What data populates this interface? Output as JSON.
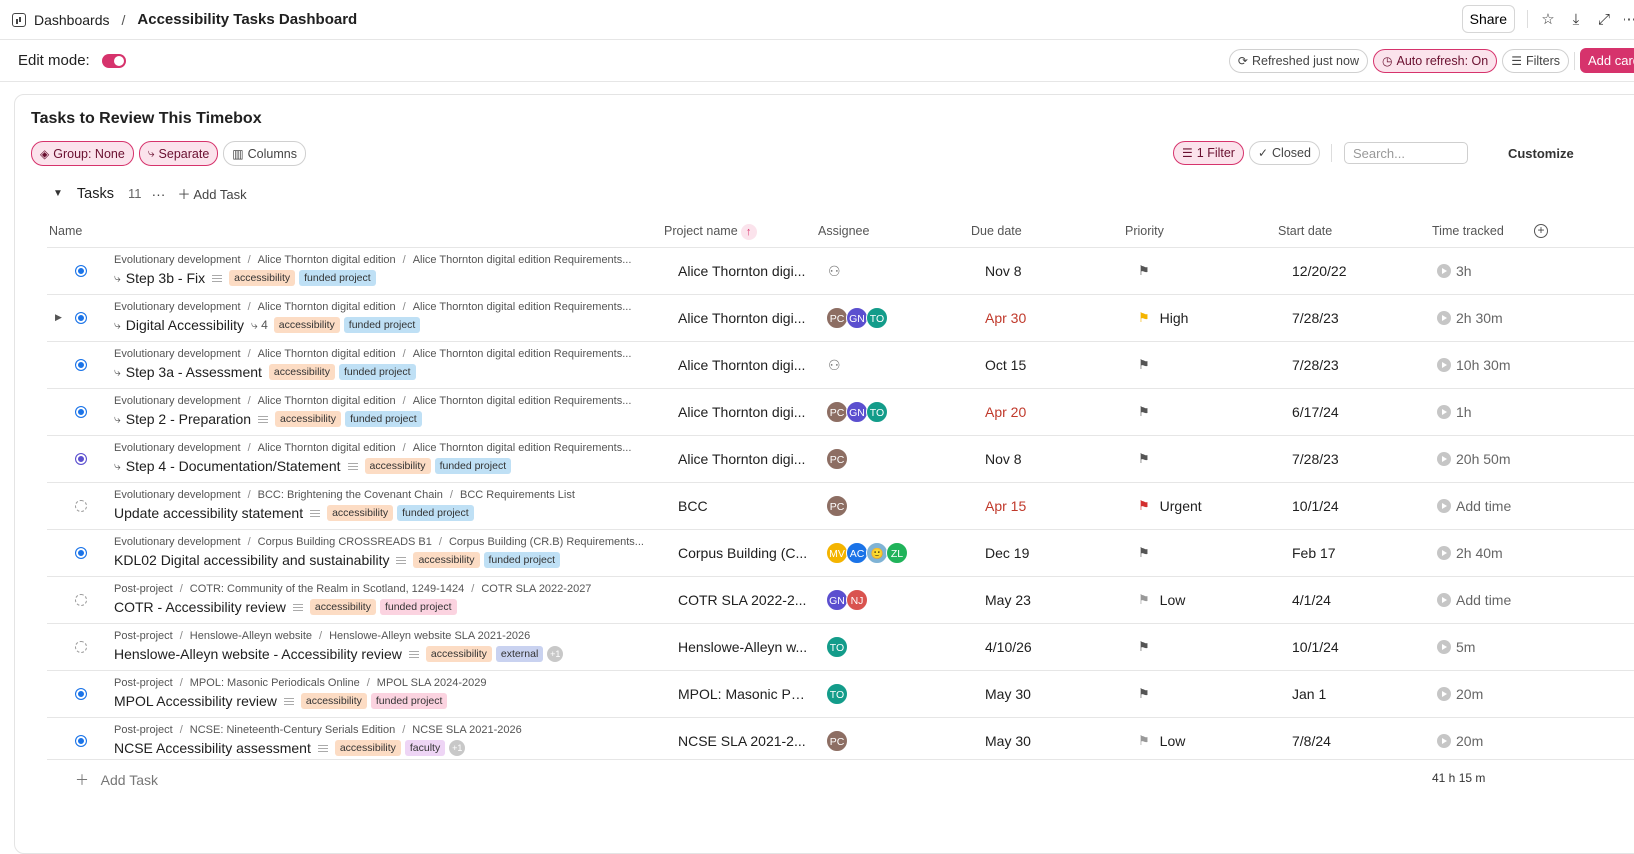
{
  "topbar": {
    "breadcrumb_root": "Dashboards",
    "breadcrumb_sep": "/",
    "title": "Accessibility Tasks Dashboard",
    "share_label": "Share"
  },
  "editbar": {
    "edit_mode_label": "Edit mode:",
    "edit_mode_on": true,
    "refreshed_label": "Refreshed just now",
    "auto_refresh_label": "Auto refresh: On",
    "filters_label": "Filters",
    "add_card_label": "Add card"
  },
  "card": {
    "title": "Tasks to Review This Timebox",
    "group_label": "Group: None",
    "separate_label": "Separate",
    "columns_label": "Columns",
    "filter_label": "1 Filter",
    "closed_label": "Closed",
    "search_placeholder": "Search...",
    "customize_label": "Customize"
  },
  "group": {
    "name": "Tasks",
    "count": "11",
    "more": "···",
    "add_task": "Add Task"
  },
  "columns": {
    "name": "Name",
    "project": "Project name",
    "assignee": "Assignee",
    "due": "Due date",
    "priority": "Priority",
    "start": "Start date",
    "time": "Time tracked"
  },
  "colors": {
    "accent": "#d6336c",
    "status_blue": "#1a73e8",
    "status_purple": "#5b4fcf",
    "overdue": "#c0392b"
  },
  "tasks": [
    {
      "path": [
        "Evolutionary development",
        "Alice Thornton digital edition",
        "Alice Thornton digital edition Requirements..."
      ],
      "name": "Step 3b - Fix",
      "subtask_icon": true,
      "desc_icon": true,
      "subcount": "",
      "tags": [
        [
          "accessibility",
          "access"
        ],
        [
          "funded project",
          "funded-blue"
        ]
      ],
      "plus": "",
      "project": "Alice Thornton digi...",
      "assignees": [],
      "due": "Nov 8",
      "due_overdue": false,
      "priority": "",
      "flag": "",
      "start": "12/20/22",
      "time": "3h",
      "status": "blue",
      "expandable": false
    },
    {
      "path": [
        "Evolutionary development",
        "Alice Thornton digital edition",
        "Alice Thornton digital edition Requirements..."
      ],
      "name": "Digital Accessibility",
      "subtask_icon": true,
      "desc_icon": false,
      "subcount": "4",
      "tags": [
        [
          "accessibility",
          "access"
        ],
        [
          "funded project",
          "funded-blue"
        ]
      ],
      "plus": "",
      "project": "Alice Thornton digi...",
      "assignees": [
        [
          "PC",
          "#8d6e63"
        ],
        [
          "GN",
          "#5b4fcf"
        ],
        [
          "TO",
          "#139c8a"
        ]
      ],
      "due": "Apr 30",
      "due_overdue": true,
      "priority": "High",
      "flag": "yellow",
      "start": "7/28/23",
      "time": "2h 30m",
      "status": "blue",
      "expandable": true
    },
    {
      "path": [
        "Evolutionary development",
        "Alice Thornton digital edition",
        "Alice Thornton digital edition Requirements..."
      ],
      "name": "Step 3a - Assessment",
      "subtask_icon": true,
      "desc_icon": false,
      "subcount": "",
      "tags": [
        [
          "accessibility",
          "access"
        ],
        [
          "funded project",
          "funded-blue"
        ]
      ],
      "plus": "",
      "project": "Alice Thornton digi...",
      "assignees": [],
      "due": "Oct 15",
      "due_overdue": false,
      "priority": "",
      "flag": "",
      "start": "7/28/23",
      "time": "10h 30m",
      "status": "blue",
      "expandable": false
    },
    {
      "path": [
        "Evolutionary development",
        "Alice Thornton digital edition",
        "Alice Thornton digital edition Requirements..."
      ],
      "name": "Step 2 - Preparation",
      "subtask_icon": true,
      "desc_icon": true,
      "subcount": "",
      "tags": [
        [
          "accessibility",
          "access"
        ],
        [
          "funded project",
          "funded-blue"
        ]
      ],
      "plus": "",
      "project": "Alice Thornton digi...",
      "assignees": [
        [
          "PC",
          "#8d6e63"
        ],
        [
          "GN",
          "#5b4fcf"
        ],
        [
          "TO",
          "#139c8a"
        ]
      ],
      "due": "Apr 20",
      "due_overdue": true,
      "priority": "",
      "flag": "",
      "start": "6/17/24",
      "time": "1h",
      "status": "blue",
      "expandable": false
    },
    {
      "path": [
        "Evolutionary development",
        "Alice Thornton digital edition",
        "Alice Thornton digital edition Requirements..."
      ],
      "name": "Step 4 - Documentation/Statement",
      "subtask_icon": true,
      "desc_icon": true,
      "subcount": "",
      "tags": [
        [
          "accessibility",
          "access"
        ],
        [
          "funded project",
          "funded-blue"
        ]
      ],
      "plus": "",
      "project": "Alice Thornton digi...",
      "assignees": [
        [
          "PC",
          "#8d6e63"
        ]
      ],
      "due": "Nov 8",
      "due_overdue": false,
      "priority": "",
      "flag": "",
      "start": "7/28/23",
      "time": "20h 50m",
      "status": "purple",
      "expandable": false
    },
    {
      "path": [
        "Evolutionary development",
        "BCC: Brightening the Covenant Chain",
        "BCC Requirements List"
      ],
      "name": "Update accessibility statement",
      "subtask_icon": false,
      "desc_icon": true,
      "subcount": "",
      "tags": [
        [
          "accessibility",
          "access"
        ],
        [
          "funded project",
          "funded-blue"
        ]
      ],
      "plus": "",
      "project": "BCC",
      "assignees": [
        [
          "PC",
          "#8d6e63"
        ]
      ],
      "due": "Apr 15",
      "due_overdue": true,
      "priority": "Urgent",
      "flag": "red",
      "start": "10/1/24",
      "time": "Add time",
      "status": "open",
      "expandable": false
    },
    {
      "path": [
        "Evolutionary development",
        "Corpus Building CROSSREADS B1",
        "Corpus Building (CR.B) Requirements..."
      ],
      "name": "KDL02 Digital accessibility and sustainability",
      "subtask_icon": false,
      "desc_icon": true,
      "subcount": "",
      "tags": [
        [
          "accessibility",
          "access"
        ],
        [
          "funded project",
          "funded-blue"
        ]
      ],
      "plus": "",
      "project": "Corpus Building (C...",
      "assignees": [
        [
          "MV",
          "#f4b400"
        ],
        [
          "AC",
          "#1a73e8"
        ],
        [
          "🙂",
          "#7fb3d5"
        ],
        [
          "ZL",
          "#20b35a"
        ]
      ],
      "due": "Dec 19",
      "due_overdue": false,
      "priority": "",
      "flag": "",
      "start": "Feb 17",
      "time": "2h 40m",
      "status": "blue",
      "expandable": false
    },
    {
      "path": [
        "Post-project",
        "COTR: Community of the Realm in Scotland, 1249-1424",
        "COTR SLA 2022-2027"
      ],
      "name": "COTR - Accessibility review",
      "subtask_icon": false,
      "desc_icon": true,
      "subcount": "",
      "tags": [
        [
          "accessibility",
          "access"
        ],
        [
          "funded project",
          "funded-pink"
        ]
      ],
      "plus": "",
      "project": "COTR SLA 2022-2...",
      "assignees": [
        [
          "GN",
          "#5b4fcf"
        ],
        [
          "NJ",
          "#d9534f"
        ]
      ],
      "due": "May 23",
      "due_overdue": false,
      "priority": "Low",
      "flag": "gray",
      "start": "4/1/24",
      "time": "Add time",
      "status": "open",
      "expandable": false
    },
    {
      "path": [
        "Post-project",
        "Henslowe-Alleyn website",
        "Henslowe-Alleyn website SLA 2021-2026"
      ],
      "name": "Henslowe-Alleyn website - Accessibility review",
      "subtask_icon": false,
      "desc_icon": true,
      "subcount": "",
      "tags": [
        [
          "accessibility",
          "access"
        ],
        [
          "external",
          "external"
        ]
      ],
      "plus": "+1",
      "project": "Henslowe-Alleyn w...",
      "assignees": [
        [
          "TO",
          "#139c8a"
        ]
      ],
      "due": "4/10/26",
      "due_overdue": false,
      "priority": "",
      "flag": "",
      "start": "10/1/24",
      "time": "5m",
      "status": "open",
      "expandable": false
    },
    {
      "path": [
        "Post-project",
        "MPOL: Masonic Periodicals Online",
        "MPOL SLA 2024-2029"
      ],
      "name": "MPOL Accessibility review",
      "subtask_icon": false,
      "desc_icon": true,
      "subcount": "",
      "tags": [
        [
          "accessibility",
          "access"
        ],
        [
          "funded project",
          "funded-pink"
        ]
      ],
      "plus": "",
      "project": "MPOL: Masonic Pe...",
      "assignees": [
        [
          "TO",
          "#139c8a"
        ]
      ],
      "due": "May 30",
      "due_overdue": false,
      "priority": "",
      "flag": "",
      "start": "Jan 1",
      "time": "20m",
      "status": "blue",
      "expandable": false
    },
    {
      "path": [
        "Post-project",
        "NCSE: Nineteenth-Century Serials Edition",
        "NCSE SLA 2021-2026"
      ],
      "name": "NCSE Accessibility assessment",
      "subtask_icon": false,
      "desc_icon": true,
      "subcount": "",
      "tags": [
        [
          "accessibility",
          "access"
        ],
        [
          "faculty",
          "faculty"
        ]
      ],
      "plus": "+1",
      "project": "NCSE SLA 2021-2...",
      "assignees": [
        [
          "PC",
          "#8d6e63"
        ]
      ],
      "due": "May 30",
      "due_overdue": false,
      "priority": "Low",
      "flag": "gray",
      "start": "7/8/24",
      "time": "20m",
      "status": "blue",
      "expandable": false
    }
  ],
  "footer": {
    "add_task": "Add Task",
    "total_time": "41 h 15 m"
  }
}
